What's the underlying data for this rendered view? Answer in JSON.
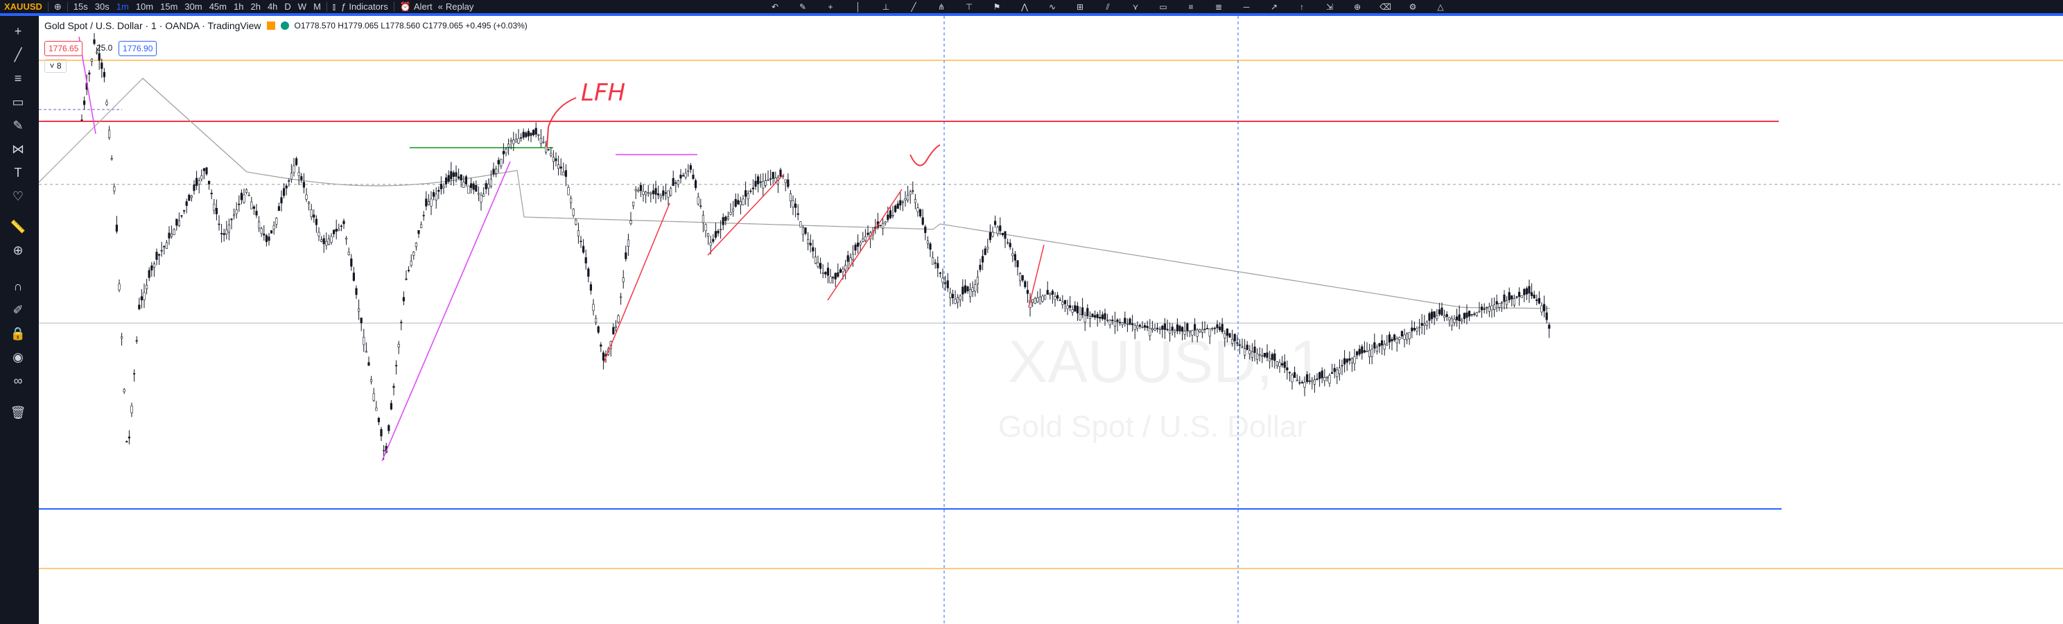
{
  "topbar": {
    "symbol": "XAUUSD",
    "timeframes": [
      "15s",
      "30s",
      "1m",
      "10m",
      "15m",
      "30m",
      "45m",
      "1h",
      "2h",
      "4h",
      "D",
      "W",
      "M"
    ],
    "active_timeframe": "1m",
    "indicators_label": "Indicators",
    "alert_label": "Alert",
    "replay_label": "Replay"
  },
  "legend": {
    "title": "Gold Spot / U.S. Dollar · 1 · OANDA · TradingView",
    "ohlc": "O1778.570 H1779.065 L1778.560 C1779.065 +0.495 (+0.03%)",
    "sell_price": "1776.65",
    "spread": "25.0",
    "buy_price": "1776.90",
    "indicator_count": "8"
  },
  "watermark": {
    "symbol": "XAUUSD, 1",
    "name": "Gold Spot / U.S. Dollar"
  },
  "annotation": {
    "text": "LFH"
  },
  "colors": {
    "accent": "#2962ff",
    "red_level": "#f23645",
    "blue_level": "#2962ff",
    "orange_level": "#ffb74d",
    "green_level": "#4caf50",
    "magenta_level": "#e040fb",
    "up_candle": "#ffffff",
    "down_candle": "#131722"
  },
  "icons": [
    "crosshair-icon",
    "trendline-icon",
    "fib-icon",
    "rectangle-icon",
    "brush-icon",
    "pattern-icon",
    "text-icon",
    "heart-icon",
    "ruler-icon",
    "zoom-icon",
    "magnet-icon",
    "lock-icon",
    "eye-icon",
    "link-icon",
    "trash-icon"
  ]
}
